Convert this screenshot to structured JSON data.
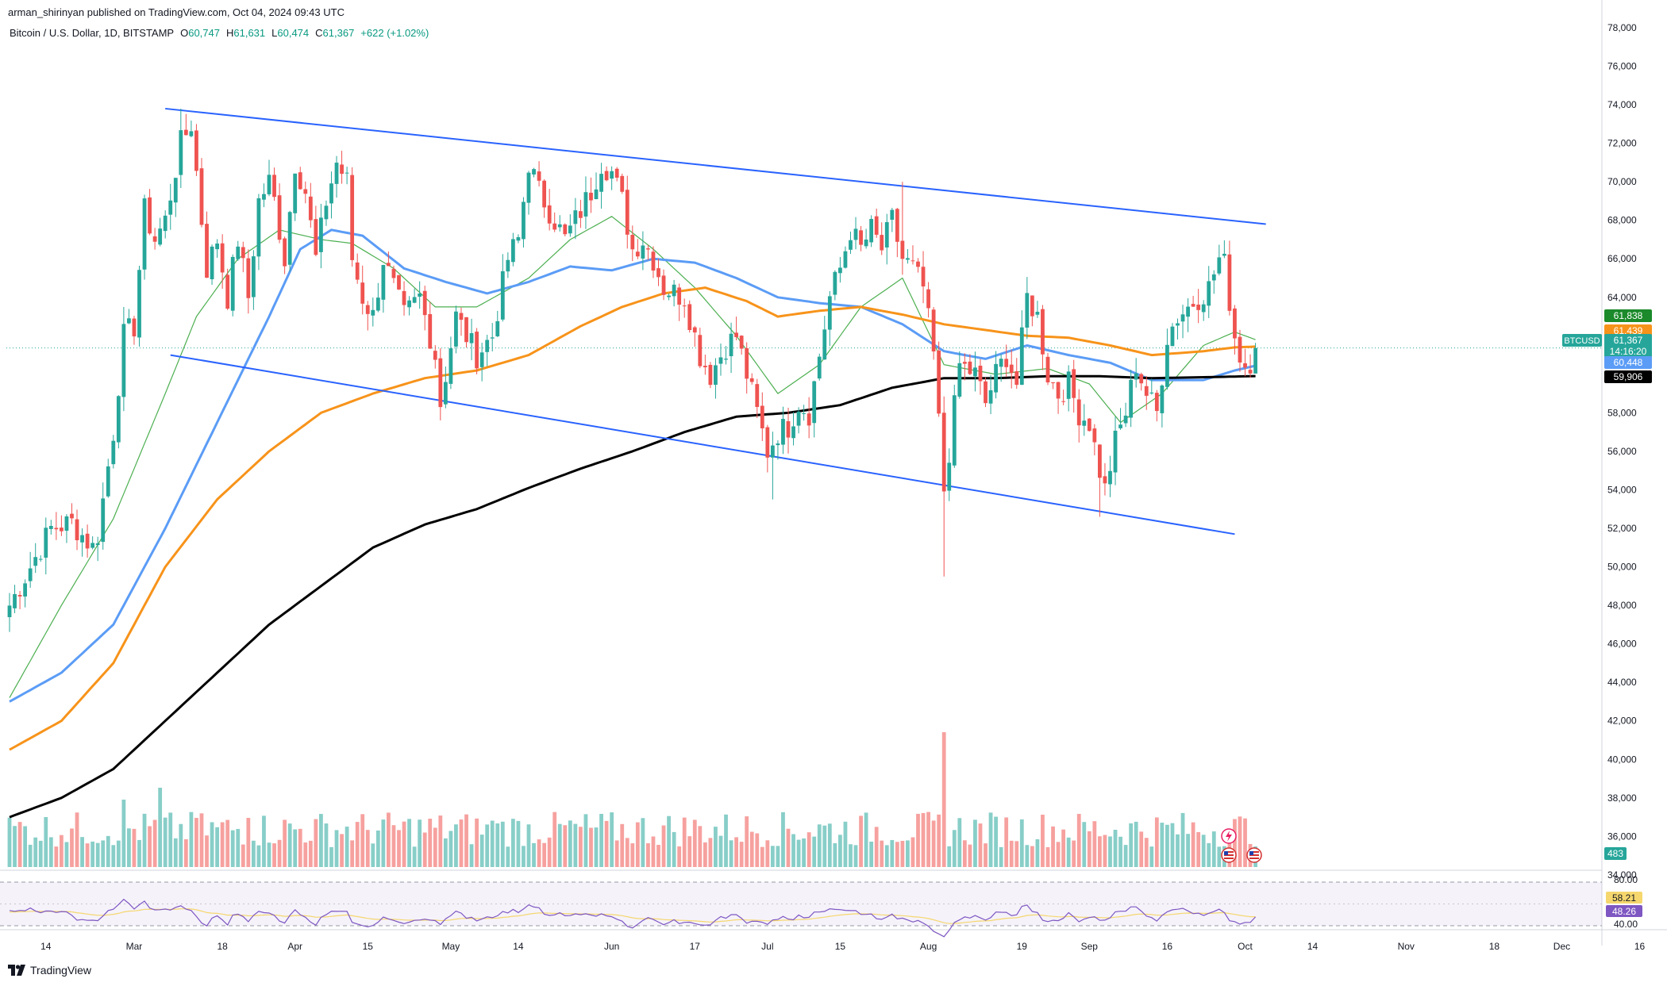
{
  "publisher": {
    "user": "arman_shirinyan",
    "rest": " published on TradingView.com, Oct 04, 2024 09:43 UTC"
  },
  "legend": {
    "symbol": "Bitcoin / U.S. Dollar, 1D, BITSTAMP",
    "o_label": "O",
    "o_value": "60,747",
    "h_label": "H",
    "h_value": "61,631",
    "l_label": "L",
    "l_value": "60,474",
    "c_label": "C",
    "c_value": "61,367",
    "change": "+622 (+1.02%)"
  },
  "footer": {
    "brand": "TradingView"
  },
  "colors": {
    "up": "#26a69a",
    "down": "#ef5350",
    "channel": "#2962ff",
    "ma_green": "#4caf50",
    "ma_blue": "#5b9cf6",
    "ma_orange": "#f7931a",
    "ma_black": "#000000",
    "rsi": "#7e57c2",
    "rsi_ma": "#f5d76e"
  },
  "chart_data": {
    "type": "candlestick",
    "symbol": "BTCUSD",
    "y_axis": {
      "range": [
        30000,
        78800
      ],
      "ticks": [
        "78,000",
        "76,000",
        "74,000",
        "72,000",
        "70,000",
        "68,000",
        "66,000",
        "64,000",
        "62,000",
        "60,000",
        "58,000",
        "56,000",
        "54,000",
        "52,000",
        "50,000",
        "48,000",
        "46,000",
        "44,000",
        "42,000",
        "40,000",
        "38,000",
        "36,000",
        "34,000"
      ]
    },
    "x_axis": {
      "start_date": "2024-02-06",
      "ticks": [
        {
          "label": "14",
          "day": 7
        },
        {
          "label": "Mar",
          "day": 24
        },
        {
          "label": "18",
          "day": 41
        },
        {
          "label": "Apr",
          "day": 55
        },
        {
          "label": "15",
          "day": 69
        },
        {
          "label": "May",
          "day": 85
        },
        {
          "label": "14",
          "day": 98
        },
        {
          "label": "Jun",
          "day": 116
        },
        {
          "label": "17",
          "day": 132
        },
        {
          "label": "Jul",
          "day": 146
        },
        {
          "label": "15",
          "day": 160
        },
        {
          "label": "Aug",
          "day": 177
        },
        {
          "label": "19",
          "day": 195
        },
        {
          "label": "Sep",
          "day": 208
        },
        {
          "label": "16",
          "day": 223
        },
        {
          "label": "Oct",
          "day": 238
        },
        {
          "label": "14",
          "day": 251
        },
        {
          "label": "Nov",
          "day": 269
        },
        {
          "label": "18",
          "day": 286
        },
        {
          "label": "Dec",
          "day": 299
        },
        {
          "label": "16",
          "day": 314
        }
      ]
    },
    "price_anchors": [
      [
        0,
        48000
      ],
      [
        4,
        50000
      ],
      [
        8,
        52000
      ],
      [
        12,
        52300
      ],
      [
        16,
        51000
      ],
      [
        17,
        51700
      ],
      [
        20,
        57000
      ],
      [
        22,
        62000
      ],
      [
        24,
        62500
      ],
      [
        26,
        68500
      ],
      [
        28,
        67000
      ],
      [
        30,
        68000
      ],
      [
        33,
        72000
      ],
      [
        35,
        73000
      ],
      [
        37,
        68000
      ],
      [
        38,
        65500
      ],
      [
        40,
        67000
      ],
      [
        42,
        64000
      ],
      [
        44,
        67000
      ],
      [
        46,
        64000
      ],
      [
        48,
        69000
      ],
      [
        50,
        70000
      ],
      [
        51,
        69000
      ],
      [
        53,
        66000
      ],
      [
        55,
        71000
      ],
      [
        57,
        69500
      ],
      [
        59,
        66000
      ],
      [
        61,
        69000
      ],
      [
        63,
        71000
      ],
      [
        65,
        70000
      ],
      [
        66,
        66000
      ],
      [
        68,
        64000
      ],
      [
        70,
        63000
      ],
      [
        72,
        66000
      ],
      [
        74,
        64500
      ],
      [
        76,
        63000
      ],
      [
        79,
        64000
      ],
      [
        82,
        61000
      ],
      [
        83,
        58500
      ],
      [
        84,
        60000
      ],
      [
        86,
        63000
      ],
      [
        88,
        62000
      ],
      [
        90,
        61000
      ],
      [
        93,
        62000
      ],
      [
        96,
        66000
      ],
      [
        98,
        67000
      ],
      [
        100,
        71000
      ],
      [
        102,
        69500
      ],
      [
        105,
        68000
      ],
      [
        107,
        67000
      ],
      [
        110,
        68500
      ],
      [
        112,
        69500
      ],
      [
        114,
        71000
      ],
      [
        116,
        70500
      ],
      [
        118,
        69000
      ],
      [
        120,
        66500
      ],
      [
        122,
        67000
      ],
      [
        124,
        66000
      ],
      [
        126,
        64500
      ],
      [
        130,
        64000
      ],
      [
        133,
        61000
      ],
      [
        135,
        60000
      ],
      [
        138,
        61500
      ],
      [
        140,
        62000
      ],
      [
        142,
        60000
      ],
      [
        144,
        58000
      ],
      [
        146,
        56000
      ],
      [
        148,
        57000
      ],
      [
        150,
        57300
      ],
      [
        152,
        58500
      ],
      [
        154,
        58000
      ],
      [
        156,
        61000
      ],
      [
        158,
        64000
      ],
      [
        160,
        65500
      ],
      [
        162,
        67500
      ],
      [
        164,
        66500
      ],
      [
        166,
        67500
      ],
      [
        168,
        66500
      ],
      [
        170,
        68000
      ],
      [
        172,
        66000
      ],
      [
        174,
        65500
      ],
      [
        176,
        64500
      ],
      [
        178,
        61000
      ],
      [
        180,
        54000
      ],
      [
        181,
        56000
      ],
      [
        183,
        60500
      ],
      [
        186,
        60000
      ],
      [
        188,
        58500
      ],
      [
        190,
        60000
      ],
      [
        192,
        61000
      ],
      [
        194,
        59500
      ],
      [
        196,
        64000
      ],
      [
        198,
        63000
      ],
      [
        200,
        60000
      ],
      [
        202,
        59000
      ],
      [
        204,
        59500
      ],
      [
        206,
        58000
      ],
      [
        208,
        57500
      ],
      [
        210,
        55000
      ],
      [
        211,
        54000
      ],
      [
        213,
        56500
      ],
      [
        215,
        58000
      ],
      [
        217,
        60500
      ],
      [
        219,
        59000
      ],
      [
        221,
        58000
      ],
      [
        223,
        62000
      ],
      [
        225,
        63000
      ],
      [
        227,
        63500
      ],
      [
        229,
        64000
      ],
      [
        231,
        64500
      ],
      [
        233,
        66000
      ],
      [
        234,
        65700
      ],
      [
        236,
        62000
      ],
      [
        237,
        61000
      ],
      [
        238,
        60500
      ],
      [
        239,
        60700
      ],
      [
        240,
        61367
      ]
    ],
    "channel_lines": [
      {
        "name": "upper",
        "from": {
          "day": 30,
          "price": 73800
        },
        "to": {
          "day": 242,
          "price": 67800
        }
      },
      {
        "name": "lower",
        "from": {
          "day": 31,
          "price": 61000
        },
        "to": {
          "day": 236,
          "price": 51700
        }
      }
    ],
    "moving_averages": [
      {
        "name": "MA green",
        "color": "#4caf50",
        "points": [
          [
            0,
            43200
          ],
          [
            10,
            48000
          ],
          [
            20,
            52500
          ],
          [
            30,
            59000
          ],
          [
            36,
            63000
          ],
          [
            44,
            66000
          ],
          [
            52,
            67500
          ],
          [
            60,
            67000
          ],
          [
            66,
            66800
          ],
          [
            74,
            65500
          ],
          [
            82,
            63500
          ],
          [
            90,
            63500
          ],
          [
            100,
            65000
          ],
          [
            108,
            67000
          ],
          [
            116,
            68200
          ],
          [
            124,
            66500
          ],
          [
            132,
            64500
          ],
          [
            140,
            62000
          ],
          [
            148,
            59000
          ],
          [
            156,
            60500
          ],
          [
            164,
            63500
          ],
          [
            172,
            65000
          ],
          [
            180,
            60500
          ],
          [
            190,
            60000
          ],
          [
            200,
            60300
          ],
          [
            208,
            59500
          ],
          [
            214,
            57500
          ],
          [
            222,
            59000
          ],
          [
            230,
            61500
          ],
          [
            236,
            62200
          ],
          [
            240,
            61800
          ]
        ]
      },
      {
        "name": "MA blue",
        "color": "#5b9cf6",
        "points": [
          [
            0,
            43000
          ],
          [
            10,
            44500
          ],
          [
            20,
            47000
          ],
          [
            30,
            52000
          ],
          [
            40,
            57500
          ],
          [
            50,
            63000
          ],
          [
            56,
            66500
          ],
          [
            62,
            67500
          ],
          [
            68,
            67200
          ],
          [
            76,
            65500
          ],
          [
            84,
            64800
          ],
          [
            92,
            64200
          ],
          [
            100,
            64800
          ],
          [
            108,
            65600
          ],
          [
            116,
            65400
          ],
          [
            124,
            66000
          ],
          [
            132,
            65800
          ],
          [
            140,
            65000
          ],
          [
            148,
            64000
          ],
          [
            156,
            63700
          ],
          [
            164,
            63500
          ],
          [
            172,
            62600
          ],
          [
            180,
            61200
          ],
          [
            188,
            60800
          ],
          [
            196,
            61500
          ],
          [
            204,
            61000
          ],
          [
            212,
            60600
          ],
          [
            220,
            59700
          ],
          [
            230,
            59700
          ],
          [
            236,
            60200
          ],
          [
            240,
            60448
          ]
        ]
      },
      {
        "name": "MA orange",
        "color": "#f7931a",
        "points": [
          [
            0,
            40500
          ],
          [
            10,
            42000
          ],
          [
            20,
            45000
          ],
          [
            30,
            50000
          ],
          [
            40,
            53500
          ],
          [
            50,
            56000
          ],
          [
            60,
            58000
          ],
          [
            70,
            59000
          ],
          [
            80,
            59800
          ],
          [
            90,
            60200
          ],
          [
            100,
            61000
          ],
          [
            110,
            62500
          ],
          [
            118,
            63500
          ],
          [
            126,
            64200
          ],
          [
            134,
            64500
          ],
          [
            142,
            63800
          ],
          [
            148,
            63000
          ],
          [
            156,
            63300
          ],
          [
            164,
            63500
          ],
          [
            172,
            63100
          ],
          [
            180,
            62600
          ],
          [
            188,
            62300
          ],
          [
            196,
            62000
          ],
          [
            204,
            61900
          ],
          [
            212,
            61500
          ],
          [
            220,
            61000
          ],
          [
            230,
            61200
          ],
          [
            236,
            61400
          ],
          [
            240,
            61439
          ]
        ]
      },
      {
        "name": "MA black",
        "color": "#000000",
        "points": [
          [
            0,
            37000
          ],
          [
            10,
            38000
          ],
          [
            20,
            39500
          ],
          [
            30,
            42000
          ],
          [
            40,
            44500
          ],
          [
            50,
            47000
          ],
          [
            60,
            49000
          ],
          [
            70,
            51000
          ],
          [
            80,
            52200
          ],
          [
            90,
            53000
          ],
          [
            100,
            54100
          ],
          [
            110,
            55100
          ],
          [
            120,
            56000
          ],
          [
            130,
            57000
          ],
          [
            140,
            57800
          ],
          [
            150,
            58000
          ],
          [
            160,
            58400
          ],
          [
            170,
            59300
          ],
          [
            180,
            59800
          ],
          [
            190,
            59800
          ],
          [
            200,
            59900
          ],
          [
            210,
            59900
          ],
          [
            220,
            59800
          ],
          [
            230,
            59850
          ],
          [
            240,
            59906
          ]
        ]
      }
    ],
    "price_labels": [
      {
        "text": "61,838",
        "price": 61838,
        "bg": "#1b8a2a",
        "fg": "#ffffff"
      },
      {
        "text": "61,439",
        "price": 61439,
        "bg": "#f7931a",
        "fg": "#ffffff"
      },
      {
        "text": "61,367",
        "sub": "14:16:20",
        "price": 61367,
        "bg": "#26a69a",
        "fg": "#ffffff",
        "tag": "BTCUSD"
      },
      {
        "text": "60,448",
        "price": 60448,
        "bg": "#5b9cf6",
        "fg": "#ffffff"
      },
      {
        "text": "59,906",
        "price": 59906,
        "bg": "#000000",
        "fg": "#ffffff"
      }
    ],
    "volume": {
      "label": "483",
      "spikes": [
        {
          "day": 22,
          "rel": 0.85
        },
        {
          "day": 29,
          "rel": 1.0
        },
        {
          "day": 36,
          "rel": 0.62
        },
        {
          "day": 46,
          "rel": 0.62
        },
        {
          "day": 94,
          "rel": 0.55
        },
        {
          "day": 180,
          "rel": 1.7
        }
      ]
    },
    "rsi": {
      "ticks": [
        "80.00",
        "40.00"
      ],
      "value_labels": [
        {
          "text": "58.21",
          "bg": "#f5d76e",
          "fg": "#131722"
        },
        {
          "text": "48.26",
          "bg": "#7e57c2",
          "fg": "#ffffff"
        }
      ]
    }
  }
}
